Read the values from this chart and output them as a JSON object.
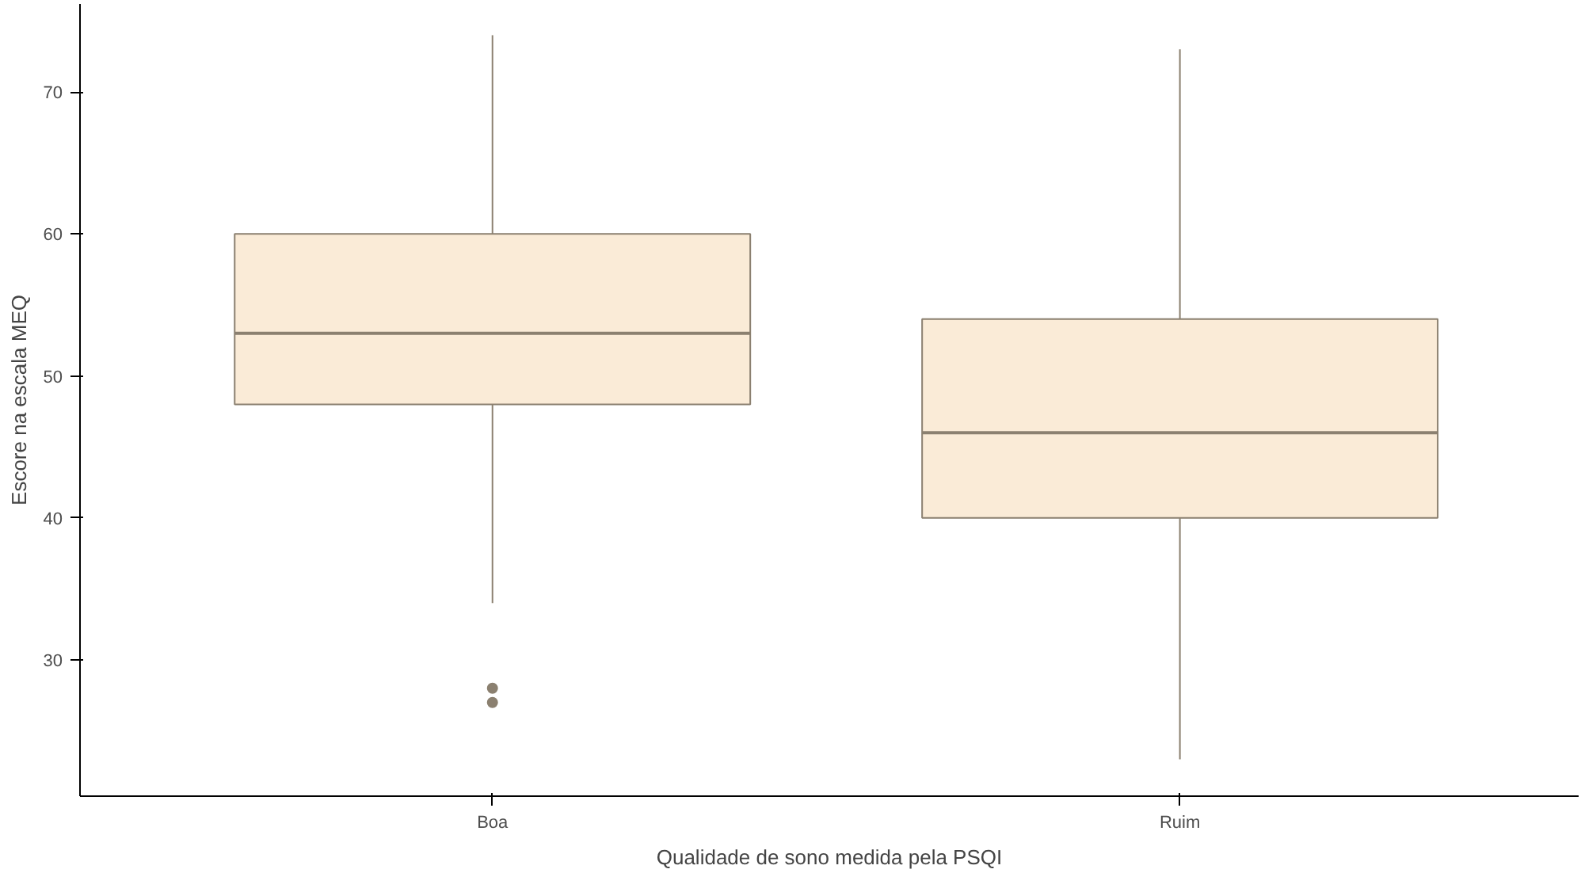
{
  "chart_data": {
    "type": "box",
    "xlabel": "Qualidade de sono medida pela PSQI",
    "ylabel": "Escore na escala MEQ",
    "categories": [
      "Boa",
      "Ruim"
    ],
    "boxes": [
      {
        "low": 34,
        "q1": 48,
        "median": 53,
        "q3": 60,
        "high": 74,
        "outliers": [
          28,
          27
        ]
      },
      {
        "low": 23,
        "q1": 40,
        "median": 46,
        "q3": 54,
        "high": 73
      }
    ],
    "color": "#faebd7",
    "ylim": [
      20.4,
      76.2
    ],
    "yticks": [
      30,
      40,
      50,
      60,
      70
    ],
    "grid": false
  }
}
